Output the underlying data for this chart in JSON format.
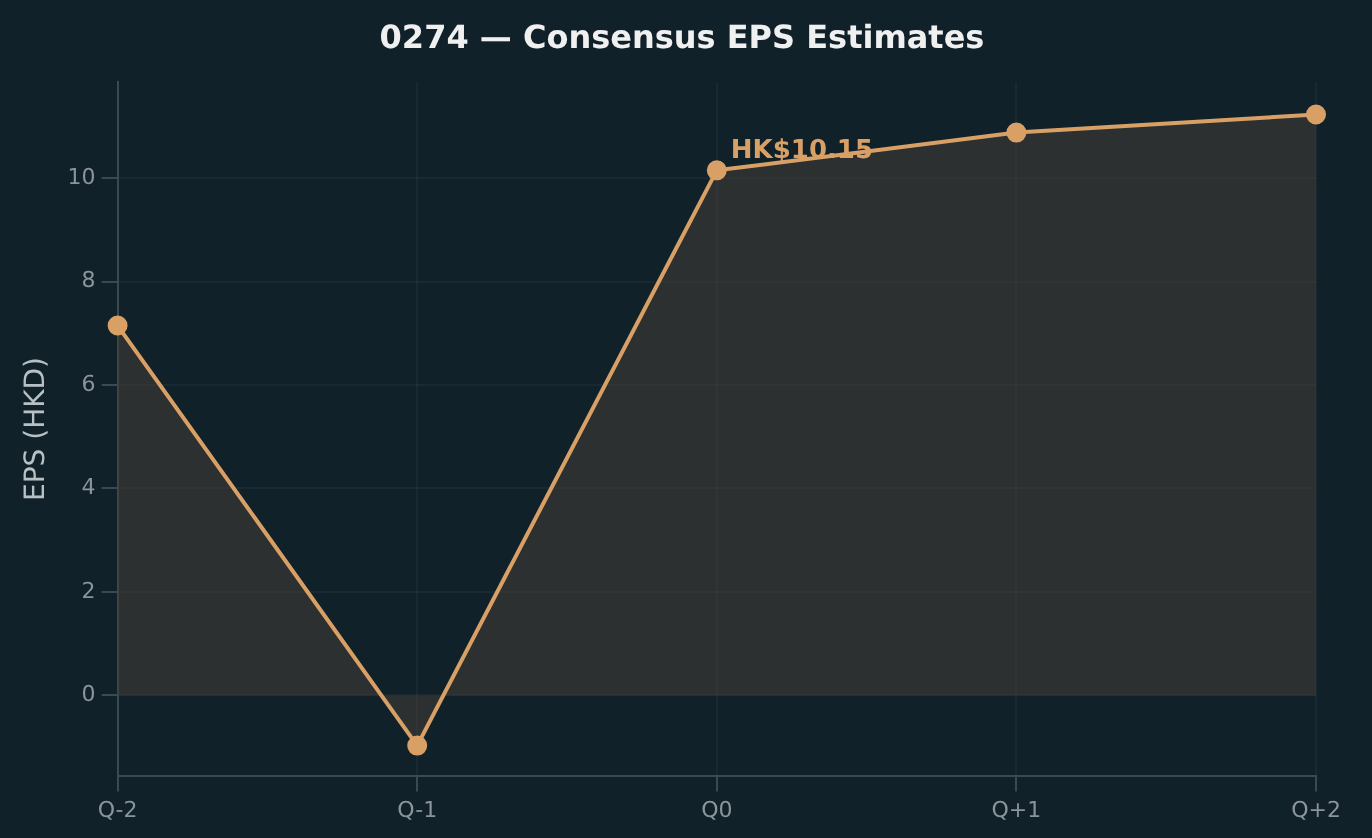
{
  "chart_data": {
    "type": "area",
    "title": "0274 — Consensus EPS Estimates",
    "ylabel": "EPS (HKD)",
    "categories": [
      "Q-2",
      "Q-1",
      "Q0",
      "Q+1",
      "Q+2"
    ],
    "series": [
      {
        "color": "#d9a066",
        "values": [
          7.15,
          -0.97,
          10.15,
          10.88,
          11.23
        ]
      }
    ],
    "ylim": [
      -1.55,
      11.85
    ],
    "yticks": [
      0,
      2,
      4,
      6,
      8,
      10
    ],
    "grid": true,
    "marker": "circle",
    "legend": false,
    "annotations": [
      {
        "text": "HK$10.15",
        "x": "Q0",
        "y": 10.15
      }
    ]
  }
}
